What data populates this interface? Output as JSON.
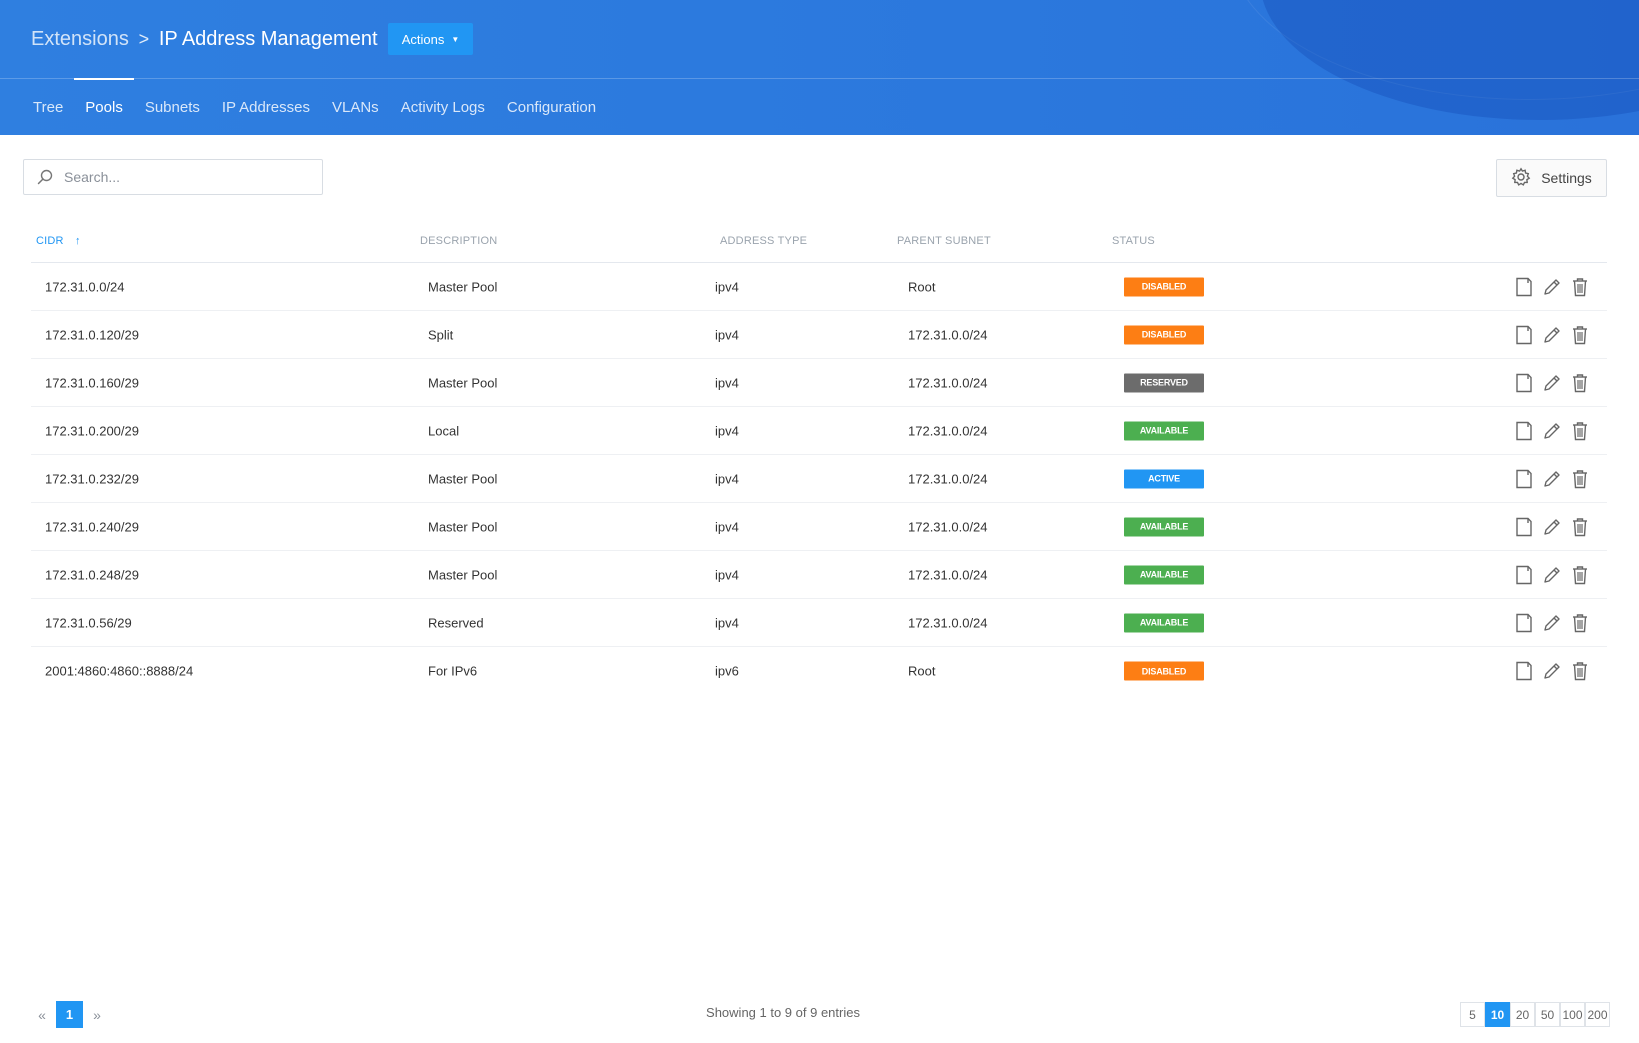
{
  "header": {
    "breadcrumb_root": "Extensions",
    "breadcrumb_separator": ">",
    "title": "IP Address Management",
    "actions_label": "Actions",
    "tabs": [
      {
        "label": "Tree",
        "active": false
      },
      {
        "label": "Pools",
        "active": true
      },
      {
        "label": "Subnets",
        "active": false
      },
      {
        "label": "IP Addresses",
        "active": false
      },
      {
        "label": "VLANs",
        "active": false
      },
      {
        "label": "Activity Logs",
        "active": false
      },
      {
        "label": "Configuration",
        "active": false
      }
    ]
  },
  "toolbar": {
    "search_placeholder": "Search...",
    "search_value": "",
    "search_icon": "search-icon",
    "settings_label": "Settings",
    "settings_icon": "gear-icon"
  },
  "table": {
    "columns": [
      {
        "label": "CIDR",
        "sort": "asc"
      },
      {
        "label": "DESCRIPTION"
      },
      {
        "label": "ADDRESS TYPE"
      },
      {
        "label": "PARENT SUBNET"
      },
      {
        "label": "STATUS"
      }
    ],
    "sort_icon": "arrow-up-icon",
    "row_action_icons": [
      "document-icon",
      "pencil-icon",
      "trash-icon"
    ],
    "rows": [
      {
        "cidr": "172.31.0.0/24",
        "description": "Master Pool",
        "type": "ipv4",
        "parent": "Root",
        "status": "DISABLED"
      },
      {
        "cidr": "172.31.0.120/29",
        "description": "Split",
        "type": "ipv4",
        "parent": "172.31.0.0/24",
        "status": "DISABLED"
      },
      {
        "cidr": "172.31.0.160/29",
        "description": "Master Pool",
        "type": "ipv4",
        "parent": "172.31.0.0/24",
        "status": "RESERVED"
      },
      {
        "cidr": "172.31.0.200/29",
        "description": "Local",
        "type": "ipv4",
        "parent": "172.31.0.0/24",
        "status": "AVAILABLE"
      },
      {
        "cidr": "172.31.0.232/29",
        "description": "Master Pool",
        "type": "ipv4",
        "parent": "172.31.0.0/24",
        "status": "ACTIVE"
      },
      {
        "cidr": "172.31.0.240/29",
        "description": "Master Pool",
        "type": "ipv4",
        "parent": "172.31.0.0/24",
        "status": "AVAILABLE"
      },
      {
        "cidr": "172.31.0.248/29",
        "description": "Master Pool",
        "type": "ipv4",
        "parent": "172.31.0.0/24",
        "status": "AVAILABLE"
      },
      {
        "cidr": "172.31.0.56/29",
        "description": "Reserved",
        "type": "ipv4",
        "parent": "172.31.0.0/24",
        "status": "AVAILABLE"
      },
      {
        "cidr": "2001:4860:4860::8888/24",
        "description": "For IPv6",
        "type": "ipv6",
        "parent": "Root",
        "status": "DISABLED"
      }
    ],
    "status_colors": {
      "DISABLED": "#fd7e14",
      "RESERVED": "#6c6c6c",
      "AVAILABLE": "#4caf50",
      "ACTIVE": "#2196f3"
    }
  },
  "footer": {
    "prev_icon": "double-chevron-left-icon",
    "next_icon": "double-chevron-right-icon",
    "current_page": "1",
    "showing_text": "Showing 1 to 9 of 9 entries",
    "page_sizes": [
      "5",
      "10",
      "20",
      "50",
      "100",
      "200"
    ],
    "active_page_size": "10"
  },
  "colors": {
    "header_bg": "#2b78dd",
    "accent": "#2196f3"
  }
}
